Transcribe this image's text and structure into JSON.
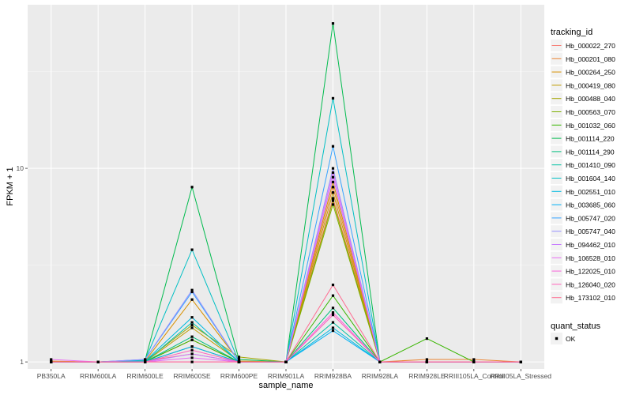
{
  "chart_data": {
    "type": "line",
    "xlabel": "sample_name",
    "ylabel": "FPKM + 1",
    "y_scale": "log10",
    "ylim": [
      0.92,
      70
    ],
    "y_ticks": [
      1,
      10
    ],
    "y_tick_labels": [
      "1",
      "10"
    ],
    "grid": true,
    "legend_placement": "right",
    "categories": [
      "PB350LA",
      "RRIM600LA",
      "RRIM600LE",
      "RRIM600SE",
      "RRIM600PE",
      "RRIM901LA",
      "RRIM928BA",
      "RRIM928LA",
      "RRIM928LE",
      "RRIII105LA_Control",
      "RRIII05LA_Stressed"
    ],
    "color_legend_title": "tracking_id",
    "status_legend_title": "quant_status",
    "status_legend_item": "OK",
    "point_color": "#000000",
    "series": [
      {
        "name": "Hb_000022_270",
        "color": "#F8766D",
        "values": [
          1.0,
          1.0,
          1.01,
          1.1,
          1.0,
          1.0,
          7.0,
          1.0,
          1.0,
          1.0,
          1.0
        ]
      },
      {
        "name": "Hb_000201_080",
        "color": "#EA8331",
        "values": [
          1.0,
          1.0,
          1.0,
          1.3,
          1.0,
          1.0,
          8.0,
          1.0,
          1.03,
          1.03,
          1.0
        ]
      },
      {
        "name": "Hb_000264_250",
        "color": "#D89000",
        "values": [
          1.01,
          1.0,
          1.01,
          2.1,
          1.01,
          1.0,
          8.5,
          1.0,
          1.0,
          1.0,
          1.0
        ]
      },
      {
        "name": "Hb_000419_080",
        "color": "#C09B00",
        "values": [
          1.0,
          1.0,
          1.0,
          1.5,
          1.01,
          1.0,
          7.5,
          1.0,
          1.0,
          1.0,
          1.0
        ]
      },
      {
        "name": "Hb_000488_040",
        "color": "#A3A500",
        "values": [
          1.0,
          1.0,
          1.01,
          1.55,
          1.06,
          1.0,
          6.8,
          1.0,
          1.0,
          1.0,
          1.0
        ]
      },
      {
        "name": "Hb_000563_070",
        "color": "#7CAE00",
        "values": [
          1.0,
          1.0,
          1.0,
          1.2,
          1.0,
          1.0,
          6.5,
          1.0,
          1.0,
          1.0,
          1.0
        ]
      },
      {
        "name": "Hb_001032_060",
        "color": "#39B600",
        "values": [
          1.0,
          1.0,
          1.0,
          1.3,
          1.0,
          1.0,
          2.2,
          1.0,
          1.32,
          1.0,
          1.0
        ]
      },
      {
        "name": "Hb_001114_220",
        "color": "#00BB4E",
        "values": [
          1.0,
          1.0,
          1.02,
          8.0,
          1.03,
          1.0,
          56.0,
          1.0,
          1.0,
          1.0,
          1.0
        ]
      },
      {
        "name": "Hb_001114_290",
        "color": "#00BF7D",
        "values": [
          1.0,
          1.0,
          1.0,
          1.35,
          1.0,
          1.0,
          1.9,
          1.0,
          1.0,
          1.0,
          1.0
        ]
      },
      {
        "name": "Hb_001410_090",
        "color": "#00C1A3",
        "values": [
          1.0,
          1.0,
          1.0,
          1.6,
          1.0,
          1.0,
          1.6,
          1.0,
          1.0,
          1.0,
          1.0
        ]
      },
      {
        "name": "Hb_001604_140",
        "color": "#00BFC4",
        "values": [
          1.0,
          1.0,
          1.02,
          3.8,
          1.0,
          1.0,
          23.0,
          1.0,
          1.0,
          1.0,
          1.0
        ]
      },
      {
        "name": "Hb_002551_010",
        "color": "#00BAE0",
        "values": [
          1.0,
          1.0,
          1.01,
          1.7,
          1.0,
          1.0,
          1.5,
          1.0,
          1.0,
          1.0,
          1.0
        ]
      },
      {
        "name": "Hb_003685_060",
        "color": "#00B0F6",
        "values": [
          1.0,
          1.0,
          1.0,
          1.2,
          1.0,
          1.0,
          1.45,
          1.0,
          1.0,
          1.0,
          1.0
        ]
      },
      {
        "name": "Hb_005747_020",
        "color": "#35A2FF",
        "values": [
          1.0,
          1.0,
          1.03,
          2.3,
          1.0,
          1.0,
          13.0,
          1.0,
          1.0,
          1.0,
          1.0
        ]
      },
      {
        "name": "Hb_005747_040",
        "color": "#9590FF",
        "values": [
          1.0,
          1.0,
          1.03,
          2.35,
          1.0,
          1.0,
          10.0,
          1.0,
          1.0,
          1.0,
          1.0
        ]
      },
      {
        "name": "Hb_094462_010",
        "color": "#C77CFF",
        "values": [
          1.0,
          1.0,
          1.0,
          1.1,
          1.0,
          1.0,
          9.0,
          1.0,
          1.0,
          1.0,
          1.0
        ]
      },
      {
        "name": "Hb_106528_010",
        "color": "#E76BF3",
        "values": [
          1.03,
          1.0,
          1.0,
          1.05,
          1.0,
          1.0,
          9.5,
          1.0,
          1.0,
          1.0,
          1.0
        ]
      },
      {
        "name": "Hb_122025_010",
        "color": "#FA62DB",
        "values": [
          1.0,
          1.0,
          1.0,
          1.0,
          1.0,
          1.0,
          1.8,
          1.0,
          1.0,
          1.0,
          1.0
        ]
      },
      {
        "name": "Hb_126040_020",
        "color": "#FF62BC",
        "values": [
          1.0,
          1.0,
          1.0,
          1.15,
          1.0,
          1.0,
          1.75,
          1.0,
          1.0,
          1.0,
          1.0
        ]
      },
      {
        "name": "Hb_173102_010",
        "color": "#FF6C91",
        "values": [
          1.0,
          1.0,
          1.0,
          1.0,
          1.0,
          1.0,
          2.5,
          1.0,
          1.0,
          1.0,
          1.0
        ]
      }
    ]
  }
}
